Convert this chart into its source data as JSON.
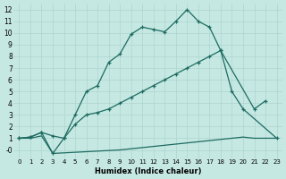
{
  "xlabel": "Humidex (Indice chaleur)",
  "background_color": "#c5e8e3",
  "grid_color": "#afd4ce",
  "line_color": "#1d6b60",
  "xlim": [
    -0.5,
    23.5
  ],
  "ylim": [
    -0.7,
    12.5
  ],
  "xticks": [
    0,
    1,
    2,
    3,
    4,
    5,
    6,
    7,
    8,
    9,
    10,
    11,
    12,
    13,
    14,
    15,
    16,
    17,
    18,
    19,
    20,
    21,
    22,
    23
  ],
  "yticks": [
    0,
    1,
    2,
    3,
    4,
    5,
    6,
    7,
    8,
    9,
    10,
    11,
    12
  ],
  "ytick_labels": [
    "-0",
    "1",
    "2",
    "3",
    "4",
    "5",
    "6",
    "7",
    "8",
    "9",
    "10",
    "11",
    "12"
  ],
  "line_upper_x": [
    0,
    1,
    2,
    3,
    4,
    5,
    6,
    7,
    8,
    9,
    10,
    11,
    12,
    13,
    14,
    15,
    16,
    17,
    18,
    21,
    22
  ],
  "line_upper_y": [
    1.0,
    1.1,
    1.5,
    -0.3,
    1.0,
    3.0,
    5.0,
    5.5,
    7.5,
    8.2,
    9.9,
    10.5,
    10.3,
    10.1,
    11.0,
    12.0,
    11.0,
    10.5,
    8.5,
    3.5,
    4.2
  ],
  "line_mid_x": [
    0,
    1,
    2,
    3,
    4,
    5,
    6,
    7,
    8,
    9,
    10,
    11,
    12,
    13,
    14,
    15,
    16,
    17,
    18,
    19,
    20,
    23
  ],
  "line_mid_y": [
    1.0,
    1.1,
    1.5,
    1.2,
    1.0,
    2.2,
    3.0,
    3.2,
    3.5,
    4.0,
    4.5,
    5.0,
    5.5,
    6.0,
    6.5,
    7.0,
    7.5,
    8.0,
    8.5,
    5.0,
    3.5,
    1.0
  ],
  "line_low_x": [
    0,
    1,
    2,
    3,
    4,
    5,
    6,
    7,
    8,
    9,
    10,
    11,
    12,
    13,
    14,
    15,
    16,
    17,
    18,
    19,
    20,
    21,
    22,
    23
  ],
  "line_low_y": [
    1.0,
    1.0,
    1.2,
    -0.3,
    -0.25,
    -0.2,
    -0.15,
    -0.1,
    -0.05,
    0.0,
    0.1,
    0.2,
    0.3,
    0.4,
    0.5,
    0.6,
    0.7,
    0.8,
    0.9,
    1.0,
    1.1,
    1.0,
    1.0,
    1.0
  ]
}
